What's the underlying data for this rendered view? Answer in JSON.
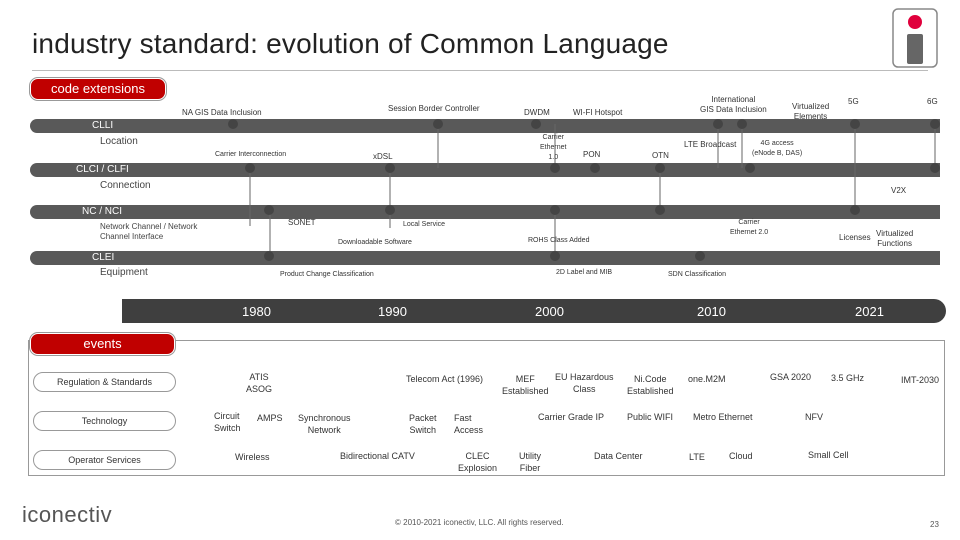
{
  "title": "industry standard: evolution of Common Language",
  "code_extensions_label": "code extensions",
  "events_label": "events",
  "categories": [
    {
      "name": "CLLI",
      "sub": "Location"
    },
    {
      "name": "CLCI / CLFI",
      "sub": "Connection"
    },
    {
      "name": "NC / NCI",
      "sub": "Network Channel / Network\nChannel Interface"
    },
    {
      "name": "CLEI",
      "sub": "Equipment"
    }
  ],
  "code_labels": {
    "na_gis": "NA GIS Data Inclusion",
    "session_border": "Session Border Controller",
    "dwdm": "DWDM",
    "wifi_hotspot": "WI-FI Hotspot",
    "intl_gis": "International\nGIS Data Inclusion",
    "virtualized_elements": "Virtualized\nElements",
    "five_g": "5G",
    "six_g": "6G",
    "carrier_interconnection": "Carrier Interconnection",
    "xdsl": "xDSL",
    "carrier_ethernet_10": "Carrier\nEthernet\n1.0",
    "pon": "PON",
    "otn": "OTN",
    "lte_broadcast": "LTE Broadcast",
    "four_g_access": "4G access\n(eNode B, DAS)",
    "v2x": "V2X",
    "sonet": "SONET",
    "local_service": "Local Service",
    "carrier_ethernet_20": "Carrier\nEthernet 2.0",
    "licenses": "Licenses",
    "virtualized_functions": "Virtualized\nFunctions",
    "downloadable_software": "Downloadable Software",
    "rohs": "ROHS Class Added",
    "product_change": "Product Change Classification",
    "label_mib": "2D Label and MIB",
    "sdn": "SDN Classification"
  },
  "years": [
    "1980",
    "1990",
    "2000",
    "2010",
    "2021"
  ],
  "lanes": [
    "Regulation & Standards",
    "Technology",
    "Operator Services"
  ],
  "events": {
    "atis": "ATIS\nASOG",
    "telecom_act": "Telecom Act (1996)",
    "mef": "MEF\nEstablished",
    "eu_hazardous": "EU Hazardous\nClass",
    "nicode": "Ni.Code\nEstablished",
    "onem2m": "one.M2M",
    "gsa2020": "GSA 2020",
    "ghz": "3.5 GHz",
    "imt2030": "IMT-2030",
    "circuit_switch": "Circuit\nSwitch",
    "amps": "AMPS",
    "synchronous_network": "Synchronous\nNetwork",
    "packet_switch": "Packet\nSwitch",
    "fast_access": "Fast\nAccess",
    "carrier_grade_ip": "Carrier Grade IP",
    "public_wifi": "Public WIFI",
    "metro_ethernet": "Metro Ethernet",
    "nfv": "NFV",
    "wireless": "Wireless",
    "bidirectional_catv": "Bidirectional CATV",
    "clec_explosion": "CLEC\nExplosion",
    "utility_fiber": "Utility\nFiber",
    "data_center": "Data Center",
    "lte": "LTE",
    "cloud": "Cloud",
    "small_cell": "Small Cell"
  },
  "logo_text": "iconectiv",
  "footer": "© 2010-2021 iconectiv, LLC. All rights reserved.",
  "page_number": "23",
  "colors": {
    "accent_red": "#c00000",
    "bar_gray": "#595959",
    "dark_bar": "#3f3f3f"
  }
}
